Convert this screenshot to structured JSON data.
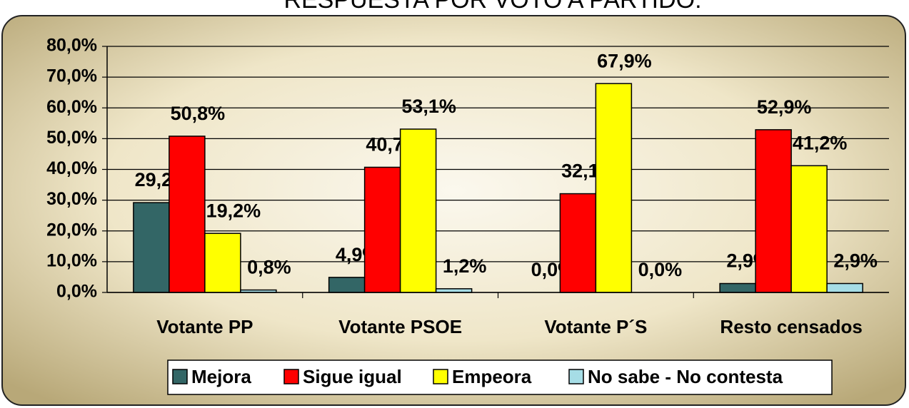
{
  "chart_data": {
    "type": "bar",
    "title": "RESPUESTA POR VOTO A PARTIDO:",
    "categories": [
      "Votante PP",
      "Votante PSOE",
      "Votante P´S",
      "Resto censados"
    ],
    "series": [
      {
        "name": "Mejora",
        "color": "#336666",
        "values": [
          29.2,
          4.9,
          0.0,
          2.9
        ],
        "value_labels": [
          "29,2%",
          "4,9%",
          "0,0%",
          "2,9%"
        ]
      },
      {
        "name": "Sigue igual",
        "color": "#ff0000",
        "values": [
          50.8,
          40.7,
          32.1,
          52.9
        ],
        "value_labels": [
          "50,8%",
          "40,7%",
          "32,1%",
          "52,9%"
        ]
      },
      {
        "name": "Empeora",
        "color": "#ffff00",
        "values": [
          19.2,
          53.1,
          67.9,
          41.2
        ],
        "value_labels": [
          "19,2%",
          "53,1%",
          "67,9%",
          "41,2%"
        ]
      },
      {
        "name": "No sabe - No contesta",
        "color": "#a6dde6",
        "values": [
          0.8,
          1.2,
          0.0,
          2.9
        ],
        "value_labels": [
          "0,8%",
          "1,2%",
          "0,0%",
          "2,9%"
        ]
      }
    ],
    "ylim": [
      0,
      80
    ],
    "yticks": [
      {
        "value": 0,
        "label": "0,0%"
      },
      {
        "value": 10,
        "label": "10,0%"
      },
      {
        "value": 20,
        "label": "20,0%"
      },
      {
        "value": 30,
        "label": "30,0%"
      },
      {
        "value": 40,
        "label": "40,0%"
      },
      {
        "value": 50,
        "label": "50,0%"
      },
      {
        "value": 60,
        "label": "60,0%"
      },
      {
        "value": 70,
        "label": "70,0%"
      },
      {
        "value": 80,
        "label": "80,0%"
      }
    ],
    "grid": true,
    "legend": "bottom"
  }
}
